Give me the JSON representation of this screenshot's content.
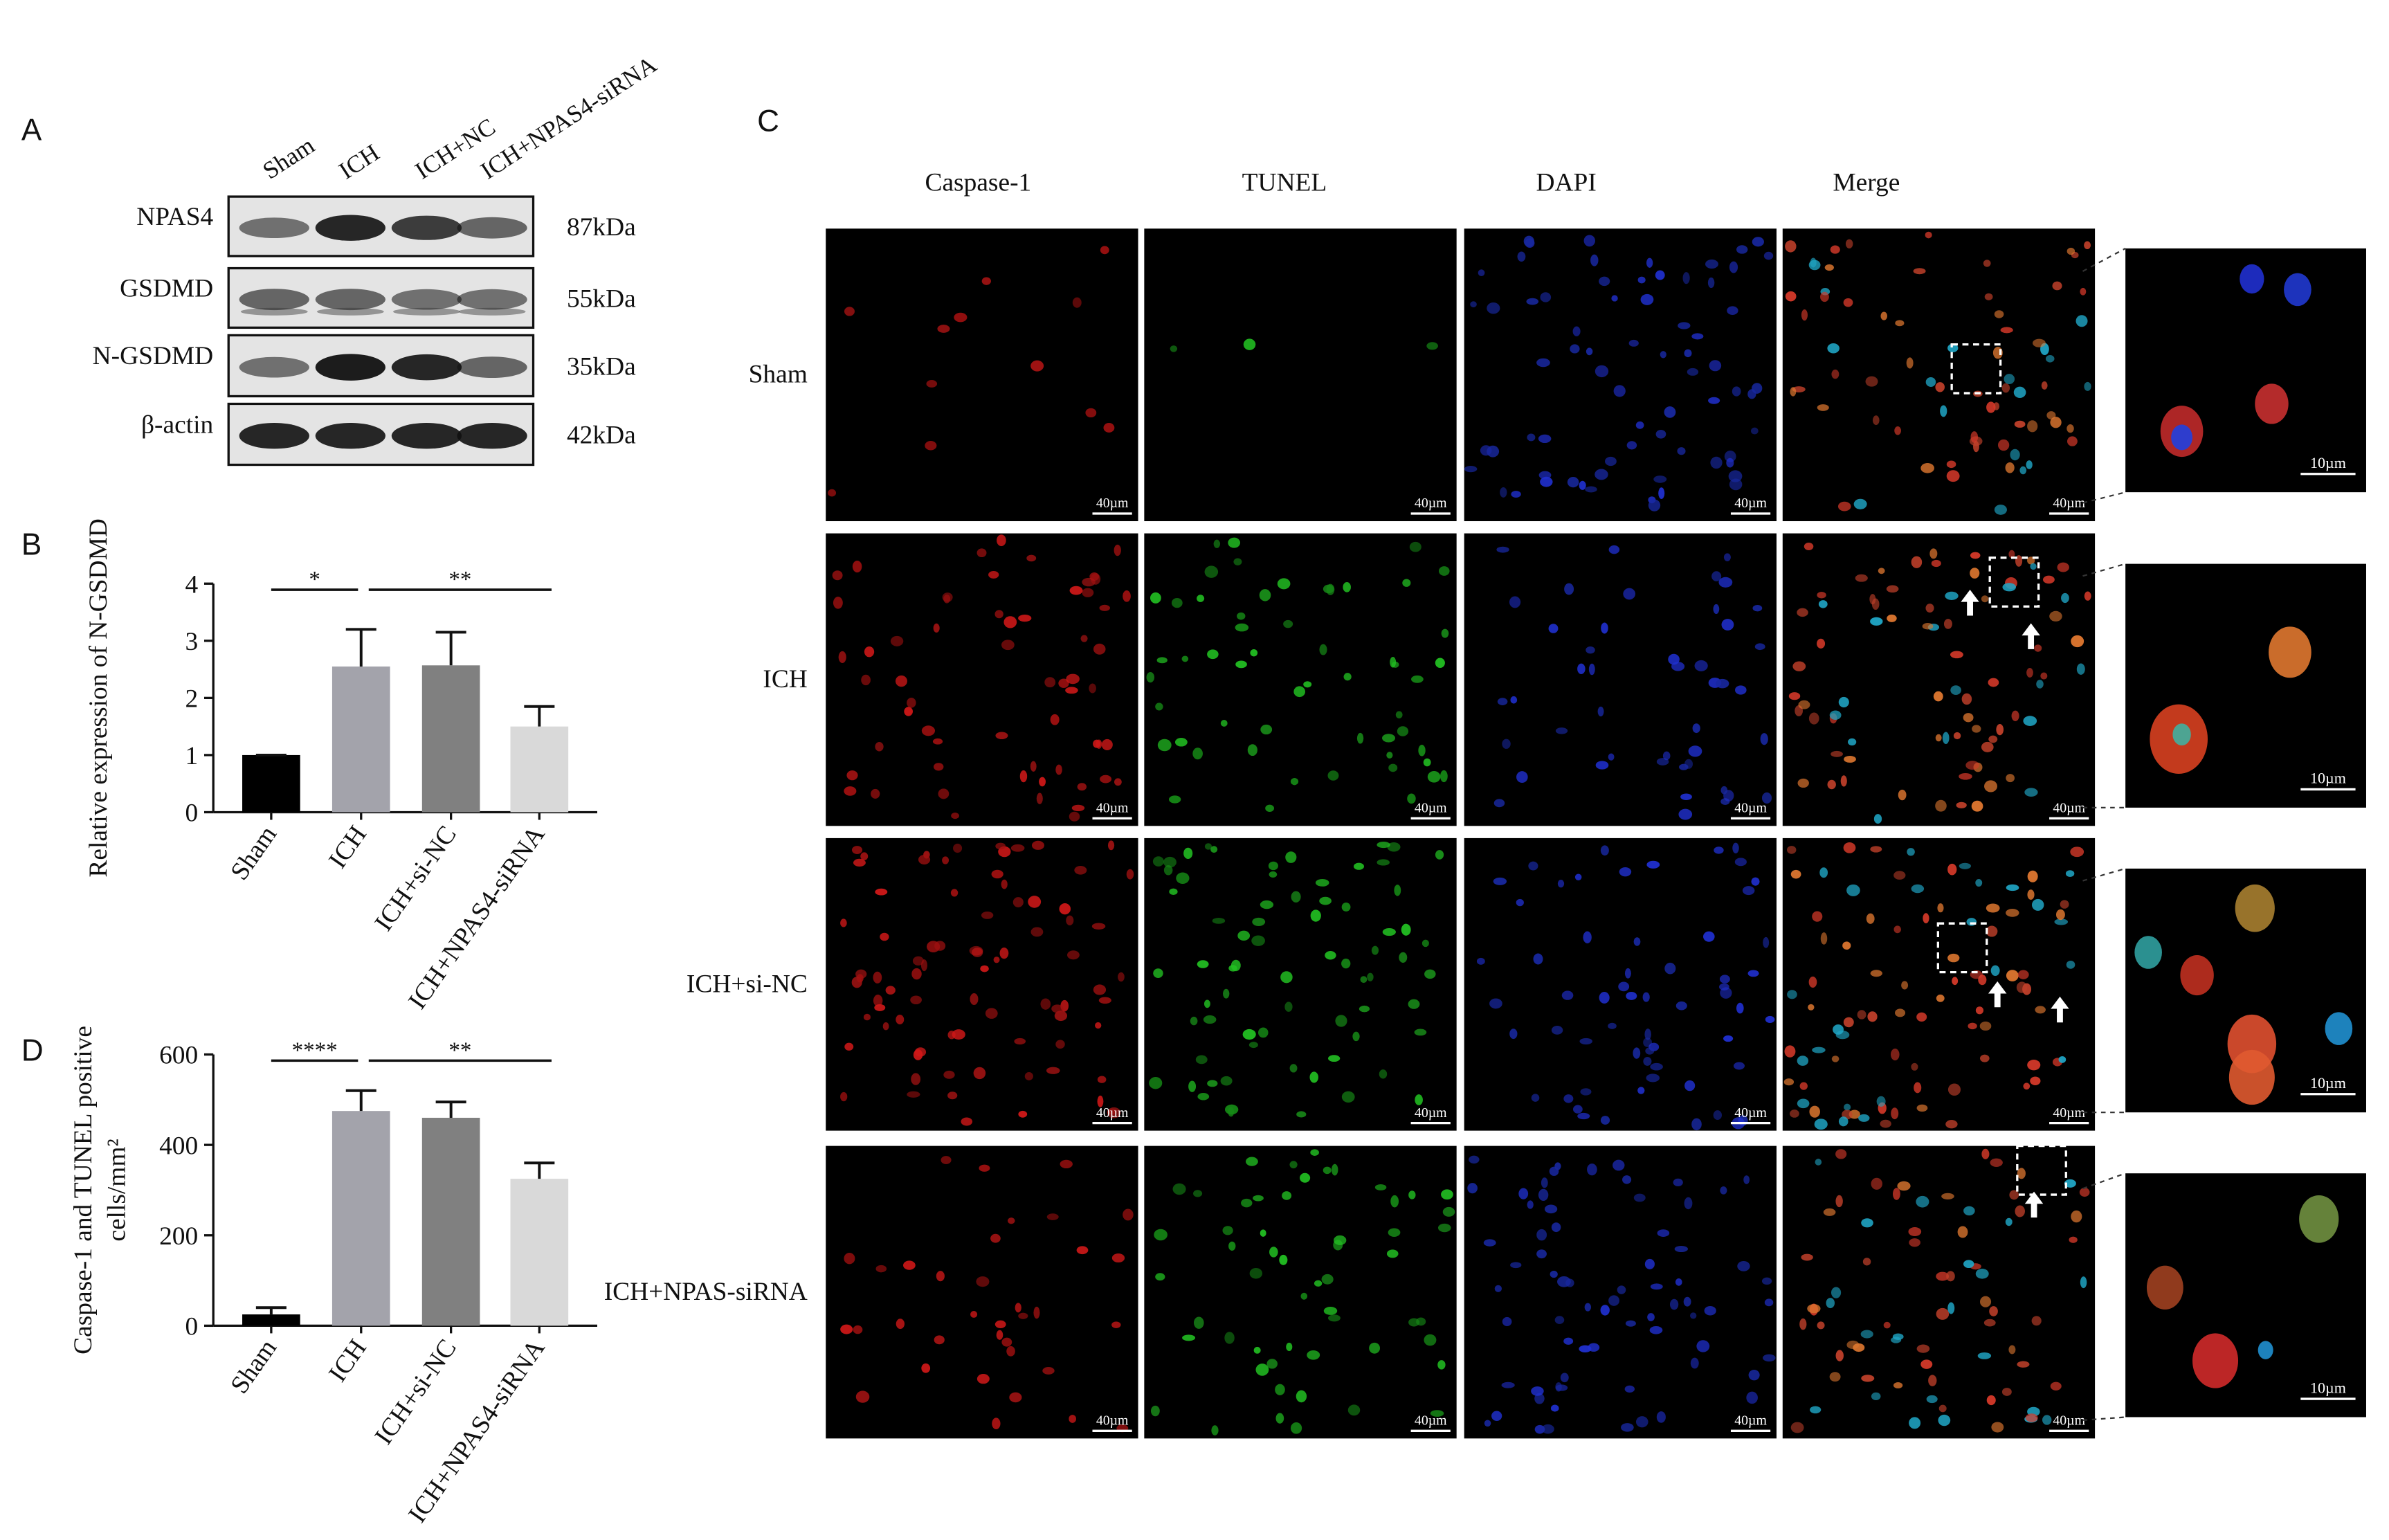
{
  "panel_labels": {
    "a": "A",
    "b": "B",
    "c": "C",
    "d": "D"
  },
  "western_blot": {
    "lanes": [
      "Sham",
      "ICH",
      "ICH+NC",
      "ICH+NPAS4-siRNA"
    ],
    "rows": [
      {
        "protein": "NPAS4",
        "size": "87kDa"
      },
      {
        "protein": "GSDMD",
        "size": "55kDa"
      },
      {
        "protein": "N-GSDMD",
        "size": "35kDa"
      },
      {
        "protein": "β-actin",
        "size": "42kDa"
      }
    ]
  },
  "chart_data": [
    {
      "type": "bar",
      "ylabel": "Relative expression of N-GSDMD",
      "categories": [
        "Sham",
        "ICH",
        "ICH+si-NC",
        "ICH+NPAS4-siRNA"
      ],
      "values": [
        1,
        2.55,
        2.57,
        1.5
      ],
      "errors": [
        0,
        0.65,
        0.58,
        0.35
      ],
      "colors": [
        "#000000",
        "#a3a3ab",
        "#808080",
        "#d9d9d9"
      ],
      "ylim": [
        0,
        4
      ],
      "yticks": [
        0,
        1,
        2,
        3,
        4
      ],
      "significance": [
        {
          "label": "*",
          "between": [
            "Sham",
            "ICH"
          ]
        },
        {
          "label": "**",
          "between": [
            "ICH",
            "ICH+NPAS4-siRNA"
          ]
        }
      ]
    },
    {
      "type": "bar",
      "ylabel": [
        "Caspase-1 and TUNEL positive",
        "cells/mm²"
      ],
      "categories": [
        "Sham",
        "ICH",
        "ICH+si-NC",
        "ICH+NPAS4-siRNA"
      ],
      "values": [
        25,
        475,
        460,
        325
      ],
      "errors": [
        15,
        45,
        35,
        35
      ],
      "colors": [
        "#000000",
        "#a3a3ab",
        "#808080",
        "#d9d9d9"
      ],
      "ylim": [
        0,
        600
      ],
      "yticks": [
        0,
        200,
        400,
        600
      ],
      "significance": [
        {
          "label": "****",
          "between": [
            "Sham",
            "ICH"
          ]
        },
        {
          "label": "**",
          "between": [
            "ICH",
            "ICH+NPAS4-siRNA"
          ]
        }
      ]
    }
  ],
  "microscopy": {
    "columns": [
      "Caspase-1",
      "TUNEL",
      "DAPI",
      "Merge"
    ],
    "rows": [
      "Sham",
      "ICH",
      "ICH+si-NC",
      "ICH+NPAS-siRNA"
    ],
    "scale_bar": "40µm",
    "inset_scale_bar": "10µm"
  }
}
